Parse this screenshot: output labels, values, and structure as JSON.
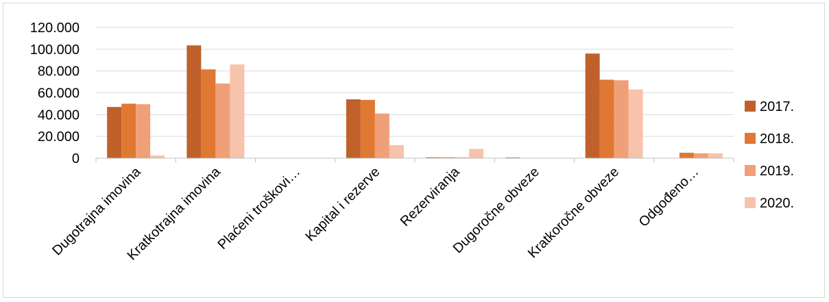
{
  "chart_data": {
    "type": "bar",
    "categories": [
      "Dugotrajna imovina",
      "Kratkotrajna imovina",
      "Plaćeni troškovi…",
      "Kapital i rezerve",
      "Rezerviranja",
      "Dugoročne obveze",
      "Kratkoročne obveze",
      "Odgođeno…"
    ],
    "series": [
      {
        "name": "2017.",
        "color": "#c0612b",
        "values": [
          47000,
          103500,
          300,
          54000,
          800,
          700,
          96000,
          0
        ]
      },
      {
        "name": "2018.",
        "color": "#e07833",
        "values": [
          50000,
          81500,
          0,
          53500,
          800,
          0,
          72000,
          5000
        ]
      },
      {
        "name": "2019.",
        "color": "#f0a079",
        "values": [
          49500,
          68500,
          0,
          41000,
          800,
          0,
          71500,
          4500
        ]
      },
      {
        "name": "2020.",
        "color": "#f7c3ad",
        "values": [
          2500,
          86000,
          0,
          12000,
          8500,
          0,
          63000,
          4500
        ]
      }
    ],
    "ylim": [
      0,
      120000
    ],
    "yticks": [
      "0",
      "20.000",
      "40.000",
      "60.000",
      "80.000",
      "100.000",
      "120.000"
    ],
    "ytick_values": [
      0,
      20000,
      40000,
      60000,
      80000,
      100000,
      120000
    ],
    "grid": true,
    "legend_position": "right",
    "title": "",
    "xlabel": "",
    "ylabel": ""
  }
}
